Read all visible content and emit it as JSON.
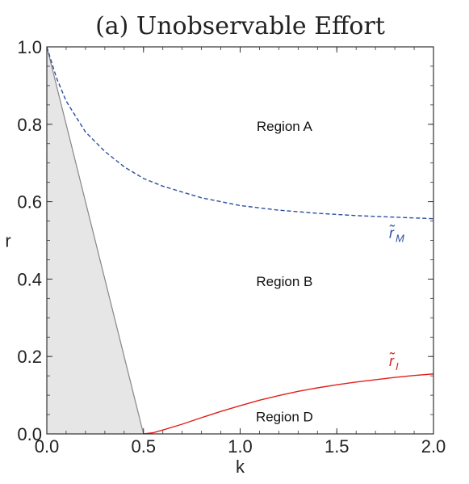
{
  "chart_data": {
    "type": "line",
    "title": "(a) Unobservable Effort",
    "xlabel": "k",
    "ylabel": "r",
    "xlim": [
      0,
      2
    ],
    "ylim": [
      0,
      1
    ],
    "xticks": [
      "0.0",
      "0.5",
      "1.0",
      "1.5",
      "2.0"
    ],
    "yticks": [
      "0.0",
      "0.2",
      "0.4",
      "0.6",
      "0.8",
      "1.0"
    ],
    "series": [
      {
        "name": "r̃_M",
        "label_main": "r̃",
        "label_sub": "M",
        "style": "dashed",
        "color": "#2b4f9e",
        "x": [
          0,
          0.05,
          0.1,
          0.15,
          0.2,
          0.3,
          0.4,
          0.5,
          0.6,
          0.7,
          0.8,
          1.0,
          1.2,
          1.4,
          1.6,
          1.8,
          2.0
        ],
        "y": [
          1.0,
          0.92,
          0.86,
          0.82,
          0.78,
          0.73,
          0.69,
          0.66,
          0.64,
          0.625,
          0.61,
          0.59,
          0.578,
          0.57,
          0.564,
          0.56,
          0.556
        ]
      },
      {
        "name": "r̃_I",
        "label_main": "r̃",
        "label_sub": "I",
        "style": "solid",
        "color": "#e0201b",
        "x": [
          0.5,
          0.55,
          0.6,
          0.7,
          0.8,
          0.9,
          1.0,
          1.1,
          1.2,
          1.3,
          1.4,
          1.5,
          1.6,
          1.7,
          1.8,
          1.9,
          2.0
        ],
        "y": [
          0.0,
          0.003,
          0.01,
          0.025,
          0.042,
          0.058,
          0.073,
          0.087,
          0.099,
          0.11,
          0.119,
          0.127,
          0.134,
          0.14,
          0.146,
          0.151,
          0.155
        ]
      }
    ],
    "shaded_region": {
      "color": "#e6e6e6",
      "edge_color": "#888888",
      "vertices": [
        [
          0,
          1.0
        ],
        [
          0.5,
          0.0
        ],
        [
          0,
          0.0
        ]
      ]
    },
    "annotations": [
      {
        "text": "Region A",
        "x": 1.25,
        "y": 0.795
      },
      {
        "text": "Region B",
        "x": 1.25,
        "y": 0.395
      },
      {
        "text": "Region D",
        "x": 1.25,
        "y": 0.045
      }
    ],
    "grid": false
  }
}
